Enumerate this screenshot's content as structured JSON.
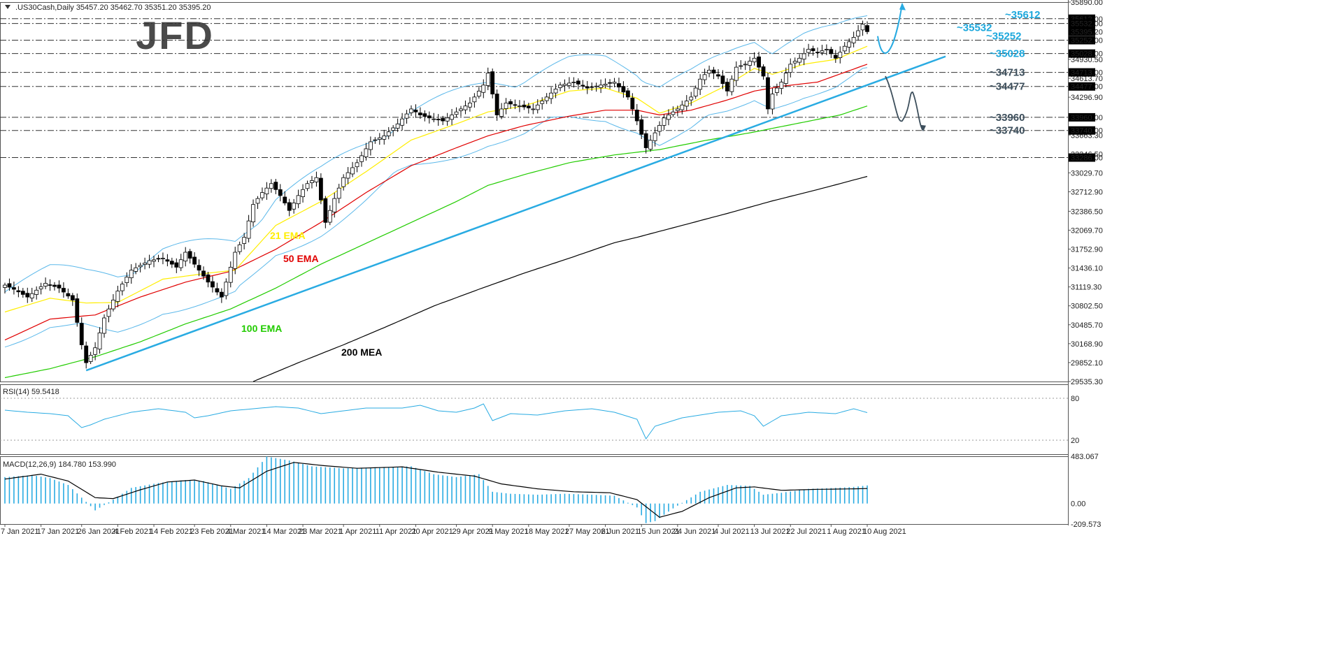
{
  "header": {
    "symbol_ohlc": ".US30Cash,Daily  35457.20 35462.70 35351.20 35395.20"
  },
  "logo": {
    "text": "JFD"
  },
  "colors": {
    "price_up": "#ffffff",
    "price_down": "#000000",
    "ema21": "#ffee00",
    "ema50": "#e00000",
    "ema100": "#22cc00",
    "sma200": "#000000",
    "bollinger": "#5bb8ea",
    "trendline": "#29abe2",
    "rsi": "#29abe2",
    "macd_hist": "#29abe2",
    "macd_signal": "#000000",
    "level_label_cyan": "#1ea8dc",
    "level_label_gray": "#3d4f5c"
  },
  "chart_data": [
    {
      "type": "line",
      "name": "price-panel",
      "series_label": ".US30Cash,Daily",
      "x_labels": [
        "7 Jan 2021",
        "17 Jan 2021",
        "26 Jan 2021",
        "4 Feb 2021",
        "14 Feb 2021",
        "23 Feb 2021",
        "4 Mar 2021",
        "14 Mar 2021",
        "23 Mar 2021",
        "1 Apr 2021",
        "11 Apr 2021",
        "20 Apr 2021",
        "29 Apr 2021",
        "9 May 2021",
        "18 May 2021",
        "27 May 2021",
        "6 Jun 2021",
        "15 Jun 2021",
        "24 Jun 2021",
        "4 Jul 2021",
        "13 Jul 2021",
        "22 Jul 2021",
        "1 Aug 2021",
        "10 Aug 2021"
      ],
      "y_ticks": [
        "35890.00",
        "34930.50",
        "34613.70",
        "34296.90",
        "33663.30",
        "33346.50",
        "33029.70",
        "32712.90",
        "32386.50",
        "32069.70",
        "31752.90",
        "31436.10",
        "31119.30",
        "30802.50",
        "30485.70",
        "30168.90",
        "29852.10",
        "29535.30"
      ],
      "ylim": [
        29535.3,
        35890.0
      ],
      "highlighted_prices": [
        "35612.00",
        "35532.00",
        "35395.20",
        "35252.00",
        "35028.00",
        "34713.00",
        "34477.00",
        "33960.00",
        "33740.00",
        "33286.00"
      ],
      "levels": [
        35612,
        35532,
        35252,
        35028,
        34713,
        34477,
        33960,
        33740,
        33286
      ],
      "level_labels": [
        {
          "text": "~35612",
          "price": 35612,
          "color": "cyan"
        },
        {
          "text": "~35532",
          "price": 35532,
          "color": "cyan"
        },
        {
          "text": "~35252",
          "price": 35252,
          "color": "cyan"
        },
        {
          "text": "~35028",
          "price": 35028,
          "color": "cyan"
        },
        {
          "text": "~34713",
          "price": 34713,
          "color": "gray"
        },
        {
          "text": "~34477",
          "price": 34477,
          "color": "gray"
        },
        {
          "text": "~33960",
          "price": 33960,
          "color": "gray"
        },
        {
          "text": "~33740",
          "price": 33740,
          "color": "gray"
        }
      ],
      "indicator_labels": {
        "ema21": "21 EMA",
        "ema50": "50 EMA",
        "ema100": "100 EMA",
        "sma200": "200 MEA"
      },
      "close_anchors": [
        [
          0,
          31150
        ],
        [
          2,
          31080
        ],
        [
          5,
          30950
        ],
        [
          9,
          31180
        ],
        [
          12,
          31100
        ],
        [
          15,
          30900
        ],
        [
          17,
          30150
        ],
        [
          18,
          29850
        ],
        [
          20,
          30100
        ],
        [
          22,
          30600
        ],
        [
          25,
          31050
        ],
        [
          28,
          31400
        ],
        [
          32,
          31560
        ],
        [
          35,
          31600
        ],
        [
          38,
          31450
        ],
        [
          40,
          31700
        ],
        [
          42,
          31500
        ],
        [
          45,
          31200
        ],
        [
          48,
          30950
        ],
        [
          51,
          31700
        ],
        [
          53,
          31950
        ],
        [
          55,
          32500
        ],
        [
          57,
          32700
        ],
        [
          59,
          32850
        ],
        [
          61,
          32650
        ],
        [
          63,
          32400
        ],
        [
          65,
          32650
        ],
        [
          67,
          32850
        ],
        [
          69,
          32950
        ],
        [
          71,
          32200
        ],
        [
          73,
          32600
        ],
        [
          75,
          32950
        ],
        [
          78,
          33200
        ],
        [
          81,
          33550
        ],
        [
          84,
          33650
        ],
        [
          87,
          33850
        ],
        [
          90,
          34100
        ],
        [
          92,
          34000
        ],
        [
          94,
          33950
        ],
        [
          97,
          33900
        ],
        [
          100,
          34050
        ],
        [
          103,
          34200
        ],
        [
          106,
          34500
        ],
        [
          107,
          34700
        ],
        [
          109,
          34000
        ],
        [
          111,
          34200
        ],
        [
          114,
          34150
        ],
        [
          117,
          34100
        ],
        [
          120,
          34300
        ],
        [
          123,
          34500
        ],
        [
          126,
          34550
        ],
        [
          129,
          34450
        ],
        [
          132,
          34500
        ],
        [
          135,
          34550
        ],
        [
          138,
          34300
        ],
        [
          140,
          33900
        ],
        [
          142,
          33450
        ],
        [
          144,
          33700
        ],
        [
          146,
          33950
        ],
        [
          149,
          34100
        ],
        [
          152,
          34300
        ],
        [
          154,
          34600
        ],
        [
          156,
          34750
        ],
        [
          158,
          34650
        ],
        [
          160,
          34400
        ],
        [
          162,
          34800
        ],
        [
          164,
          34850
        ],
        [
          166,
          34950
        ],
        [
          168,
          34650
        ],
        [
          169,
          34100
        ],
        [
          170,
          34350
        ],
        [
          172,
          34550
        ],
        [
          174,
          34850
        ],
        [
          176,
          34950
        ],
        [
          178,
          35100
        ],
        [
          180,
          35050
        ],
        [
          182,
          35100
        ],
        [
          184,
          34950
        ],
        [
          186,
          35150
        ],
        [
          188,
          35300
        ],
        [
          190,
          35520
        ],
        [
          191,
          35395
        ]
      ],
      "ema21_anchors": [
        [
          0,
          30700
        ],
        [
          10,
          30930
        ],
        [
          18,
          30850
        ],
        [
          25,
          30860
        ],
        [
          35,
          31250
        ],
        [
          45,
          31350
        ],
        [
          51,
          31400
        ],
        [
          60,
          32150
        ],
        [
          70,
          32550
        ],
        [
          80,
          33050
        ],
        [
          90,
          33580
        ],
        [
          100,
          33850
        ],
        [
          107,
          34050
        ],
        [
          115,
          34150
        ],
        [
          125,
          34400
        ],
        [
          133,
          34450
        ],
        [
          140,
          34280
        ],
        [
          145,
          34030
        ],
        [
          152,
          34200
        ],
        [
          160,
          34500
        ],
        [
          166,
          34780
        ],
        [
          170,
          34680
        ],
        [
          177,
          34850
        ],
        [
          184,
          34930
        ],
        [
          191,
          35150
        ]
      ],
      "ema50_anchors": [
        [
          0,
          30230
        ],
        [
          10,
          30580
        ],
        [
          20,
          30650
        ],
        [
          30,
          30950
        ],
        [
          40,
          31200
        ],
        [
          50,
          31380
        ],
        [
          60,
          31750
        ],
        [
          70,
          32200
        ],
        [
          80,
          32700
        ],
        [
          90,
          33150
        ],
        [
          100,
          33450
        ],
        [
          107,
          33650
        ],
        [
          115,
          33820
        ],
        [
          125,
          33980
        ],
        [
          133,
          34080
        ],
        [
          140,
          34080
        ],
        [
          145,
          34000
        ],
        [
          152,
          34080
        ],
        [
          160,
          34250
        ],
        [
          166,
          34400
        ],
        [
          172,
          34480
        ],
        [
          180,
          34550
        ],
        [
          191,
          34850
        ]
      ],
      "ema100_anchors": [
        [
          0,
          29600
        ],
        [
          10,
          29750
        ],
        [
          20,
          29950
        ],
        [
          30,
          30200
        ],
        [
          40,
          30500
        ],
        [
          50,
          30750
        ],
        [
          60,
          31100
        ],
        [
          70,
          31500
        ],
        [
          80,
          31850
        ],
        [
          90,
          32200
        ],
        [
          100,
          32550
        ],
        [
          107,
          32820
        ],
        [
          115,
          33000
        ],
        [
          125,
          33200
        ],
        [
          135,
          33330
        ],
        [
          145,
          33420
        ],
        [
          155,
          33570
        ],
        [
          165,
          33700
        ],
        [
          175,
          33850
        ],
        [
          185,
          34000
        ],
        [
          191,
          34150
        ]
      ],
      "sma200_anchors": [
        [
          55,
          29535
        ],
        [
          65,
          29850
        ],
        [
          75,
          30150
        ],
        [
          85,
          30470
        ],
        [
          95,
          30800
        ],
        [
          105,
          31080
        ],
        [
          115,
          31350
        ],
        [
          125,
          31600
        ],
        [
          135,
          31860
        ],
        [
          140,
          31950
        ],
        [
          150,
          32150
        ],
        [
          160,
          32350
        ],
        [
          170,
          32560
        ],
        [
          180,
          32750
        ],
        [
          191,
          32970
        ]
      ],
      "bb_width": 560
    },
    {
      "type": "line",
      "name": "rsi-panel",
      "series_label": "RSI(14) 59.5418",
      "y_ticks": [
        "80",
        "20"
      ],
      "ylim": [
        0,
        100
      ],
      "rsi_anchors": [
        [
          0,
          63
        ],
        [
          5,
          60
        ],
        [
          10,
          58
        ],
        [
          14,
          55
        ],
        [
          17,
          38
        ],
        [
          19,
          42
        ],
        [
          22,
          50
        ],
        [
          28,
          60
        ],
        [
          34,
          65
        ],
        [
          40,
          60
        ],
        [
          42,
          52
        ],
        [
          45,
          55
        ],
        [
          50,
          62
        ],
        [
          55,
          65
        ],
        [
          60,
          68
        ],
        [
          65,
          66
        ],
        [
          70,
          58
        ],
        [
          75,
          62
        ],
        [
          80,
          66
        ],
        [
          88,
          66
        ],
        [
          92,
          70
        ],
        [
          96,
          62
        ],
        [
          100,
          60
        ],
        [
          104,
          66
        ],
        [
          106,
          72
        ],
        [
          108,
          48
        ],
        [
          112,
          58
        ],
        [
          118,
          56
        ],
        [
          124,
          62
        ],
        [
          130,
          65
        ],
        [
          135,
          60
        ],
        [
          140,
          50
        ],
        [
          142,
          22
        ],
        [
          144,
          40
        ],
        [
          150,
          52
        ],
        [
          158,
          60
        ],
        [
          163,
          62
        ],
        [
          166,
          55
        ],
        [
          168,
          40
        ],
        [
          172,
          55
        ],
        [
          178,
          60
        ],
        [
          184,
          58
        ],
        [
          188,
          65
        ],
        [
          191,
          59.5
        ]
      ]
    },
    {
      "type": "bar",
      "name": "macd-panel",
      "series_label": "MACD(12,26,9) 184.780 153.990",
      "y_ticks": [
        "483.067",
        "0.00",
        "-209.573"
      ],
      "ylim": [
        -209.573,
        483.067
      ],
      "hist_anchors": [
        [
          0,
          270
        ],
        [
          6,
          290
        ],
        [
          10,
          260
        ],
        [
          14,
          190
        ],
        [
          17,
          60
        ],
        [
          20,
          -70
        ],
        [
          24,
          40
        ],
        [
          28,
          160
        ],
        [
          34,
          210
        ],
        [
          40,
          240
        ],
        [
          44,
          230
        ],
        [
          50,
          150
        ],
        [
          54,
          260
        ],
        [
          58,
          480
        ],
        [
          63,
          440
        ],
        [
          68,
          380
        ],
        [
          75,
          360
        ],
        [
          82,
          370
        ],
        [
          90,
          380
        ],
        [
          95,
          300
        ],
        [
          100,
          270
        ],
        [
          105,
          300
        ],
        [
          108,
          120
        ],
        [
          112,
          100
        ],
        [
          118,
          90
        ],
        [
          124,
          100
        ],
        [
          130,
          90
        ],
        [
          135,
          80
        ],
        [
          140,
          -40
        ],
        [
          142,
          -200
        ],
        [
          144,
          -180
        ],
        [
          148,
          -50
        ],
        [
          154,
          120
        ],
        [
          160,
          190
        ],
        [
          165,
          180
        ],
        [
          168,
          90
        ],
        [
          172,
          110
        ],
        [
          178,
          150
        ],
        [
          184,
          160
        ],
        [
          188,
          170
        ],
        [
          191,
          184.78
        ]
      ],
      "signal_anchors": [
        [
          0,
          250
        ],
        [
          8,
          300
        ],
        [
          14,
          230
        ],
        [
          20,
          60
        ],
        [
          24,
          50
        ],
        [
          30,
          140
        ],
        [
          36,
          220
        ],
        [
          42,
          240
        ],
        [
          48,
          180
        ],
        [
          52,
          160
        ],
        [
          58,
          330
        ],
        [
          64,
          420
        ],
        [
          70,
          390
        ],
        [
          78,
          360
        ],
        [
          88,
          375
        ],
        [
          96,
          320
        ],
        [
          104,
          280
        ],
        [
          110,
          200
        ],
        [
          118,
          150
        ],
        [
          126,
          120
        ],
        [
          134,
          110
        ],
        [
          140,
          40
        ],
        [
          145,
          -140
        ],
        [
          150,
          -80
        ],
        [
          156,
          60
        ],
        [
          162,
          160
        ],
        [
          166,
          170
        ],
        [
          172,
          135
        ],
        [
          180,
          145
        ],
        [
          188,
          150
        ],
        [
          191,
          153.99
        ]
      ]
    }
  ]
}
